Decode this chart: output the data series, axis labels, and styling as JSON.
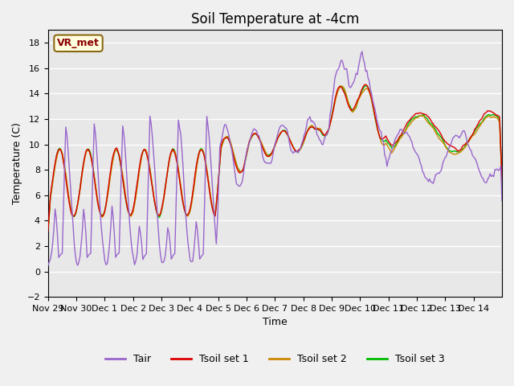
{
  "title": "Soil Temperature at -4cm",
  "xlabel": "Time",
  "ylabel": "Temperature (C)",
  "ylim": [
    -2,
    19
  ],
  "yticks": [
    -2,
    0,
    2,
    4,
    6,
    8,
    10,
    12,
    14,
    16,
    18
  ],
  "xtick_labels": [
    "Nov 29",
    "Nov 30",
    "Dec 1",
    "Dec 2",
    "Dec 3",
    "Dec 4",
    "Dec 5",
    "Dec 6",
    "Dec 7",
    "Dec 8",
    "Dec 9",
    "Dec 10",
    "Dec 11",
    "Dec 12",
    "Dec 13",
    "Dec 14"
  ],
  "station_label": "VR_met",
  "bg_color": "#e8e8e8",
  "fig_color": "#f0f0f0",
  "line_colors": {
    "Tair": "#9966cc",
    "Tsoil1": "#dd0000",
    "Tsoil2": "#cc8800",
    "Tsoil3": "#00bb00"
  },
  "legend_labels": [
    "Tair",
    "Tsoil set 1",
    "Tsoil set 2",
    "Tsoil set 3"
  ],
  "n_days": 16
}
